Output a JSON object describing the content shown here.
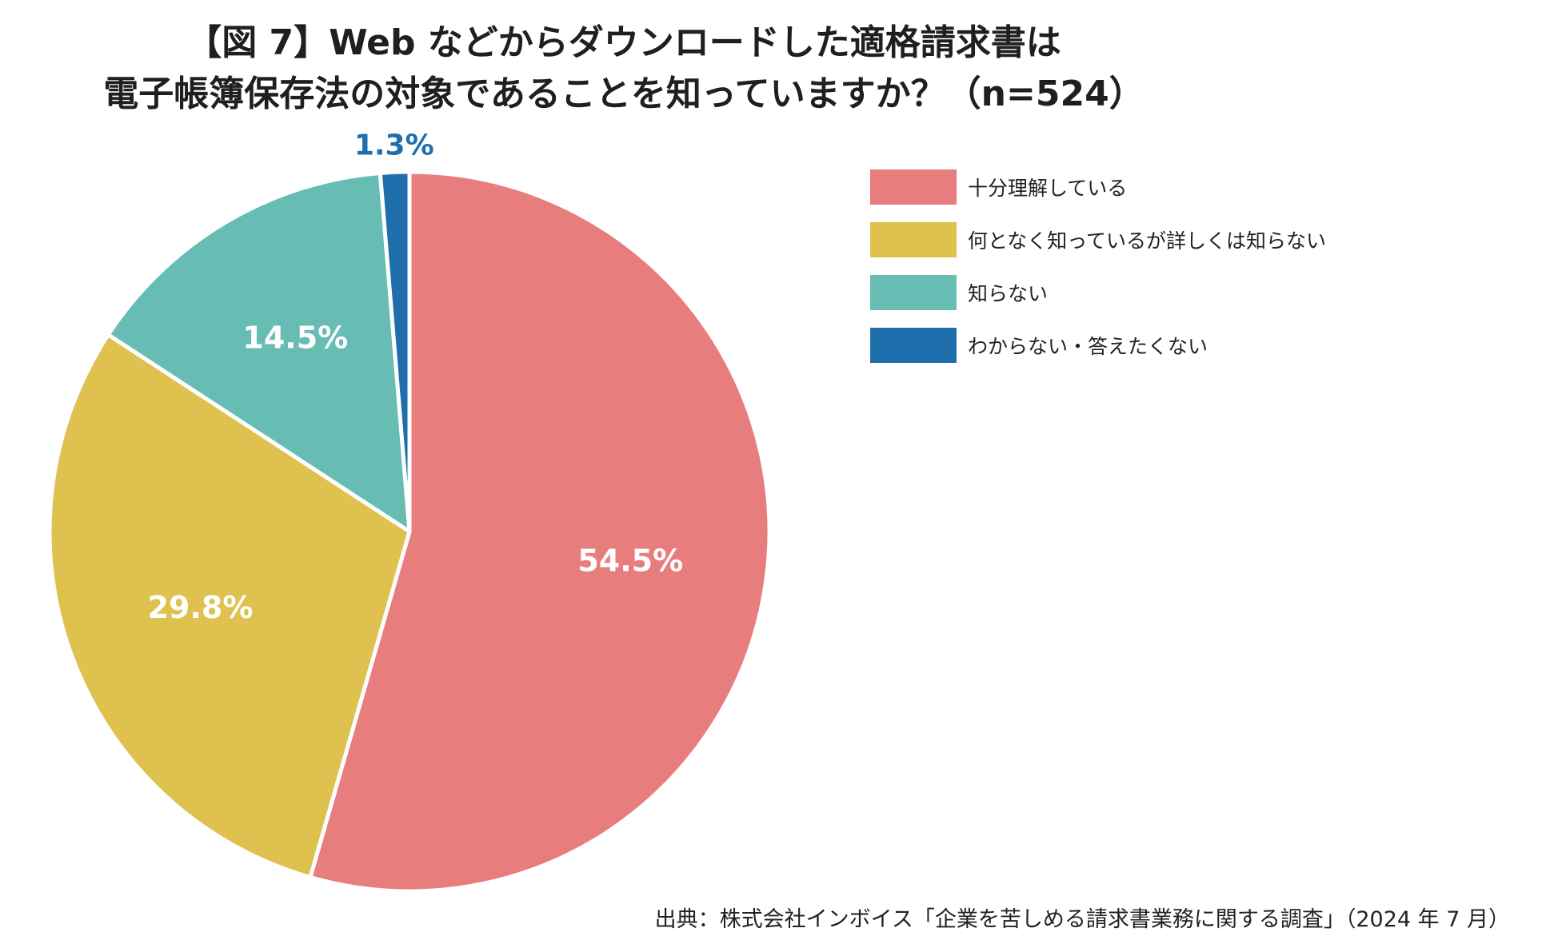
{
  "title": {
    "line1": "【図 7】Web などからダウンロードした適格請求書は",
    "line2": "電子帳簿保存法の対象であることを知っていますか？（n=524）"
  },
  "source": "出典：株式会社インボイス「企業を苦しめる請求書業務に関する調査」（2024 年 7 月）",
  "chart_data": {
    "type": "pie",
    "title": "【図 7】Web などからダウンロードした適格請求書は電子帳簿保存法の対象であることを知っていますか？（n=524）",
    "n": 524,
    "start": "12 o'clock",
    "direction": "clockwise",
    "legend_position": "right",
    "slices": [
      {
        "label": "十分理解している",
        "value": 54.5,
        "display": "54.5%",
        "color": "#e87d7e",
        "label_color": "#ffffff"
      },
      {
        "label": "何となく知っているが詳しくは知らない",
        "value": 29.8,
        "display": "29.8%",
        "color": "#dec14f",
        "label_color": "#ffffff"
      },
      {
        "label": "知らない",
        "value": 14.5,
        "display": "14.5%",
        "color": "#67bcb4",
        "label_color": "#ffffff"
      },
      {
        "label": "わからない・答えたくない",
        "value": 1.3,
        "display": "1.3%",
        "color": "#1f6fad",
        "label_color": "#1f6fad"
      }
    ]
  }
}
